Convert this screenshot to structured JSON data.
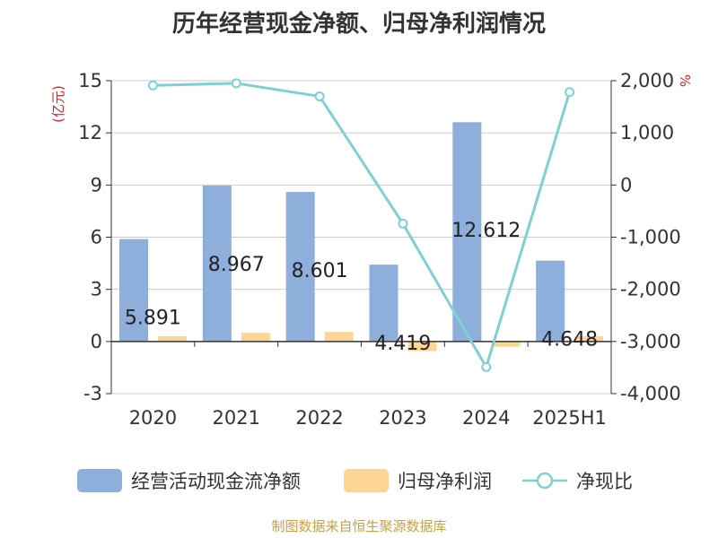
{
  "chart_data": {
    "type": "bar",
    "title": "历年经营现金净额、归母净利润情况",
    "categories": [
      "2020",
      "2021",
      "2022",
      "2023",
      "2024",
      "2025H1"
    ],
    "y_left": {
      "unit_label": "(亿元)",
      "ticks": [
        "15",
        "12",
        "9",
        "6",
        "3",
        "0",
        "-3"
      ],
      "range": [
        -3,
        15
      ]
    },
    "y_right": {
      "unit_label": "%",
      "ticks": [
        "2,000",
        "1,000",
        "0",
        "-1,000",
        "-2,000",
        "-3,000",
        "-4,000"
      ],
      "range": [
        -4000,
        2000
      ]
    },
    "series": [
      {
        "name": "经营活动现金流净额",
        "type": "bar",
        "axis": "left",
        "color": "#8eaedb",
        "values": [
          5.891,
          8.967,
          8.601,
          4.419,
          12.612,
          4.648
        ],
        "labels": [
          "5.891",
          "8.967",
          "8.601",
          "4.419",
          "12.612",
          "4.648"
        ]
      },
      {
        "name": "归母净利润",
        "type": "bar",
        "axis": "left",
        "color": "#fdd594",
        "values": [
          0.3,
          0.5,
          0.55,
          -0.55,
          -0.3,
          0.3
        ]
      },
      {
        "name": "净现比",
        "type": "line",
        "axis": "right",
        "color": "#7fd0d3",
        "values": [
          1910,
          1950,
          1700,
          -740,
          -3490,
          1780
        ]
      }
    ],
    "grid": true
  },
  "legend": {
    "item0": "经营活动现金流净额",
    "item1": "归母净利润",
    "item2": "净现比"
  },
  "source": "制图数据来自恒生聚源数据库"
}
